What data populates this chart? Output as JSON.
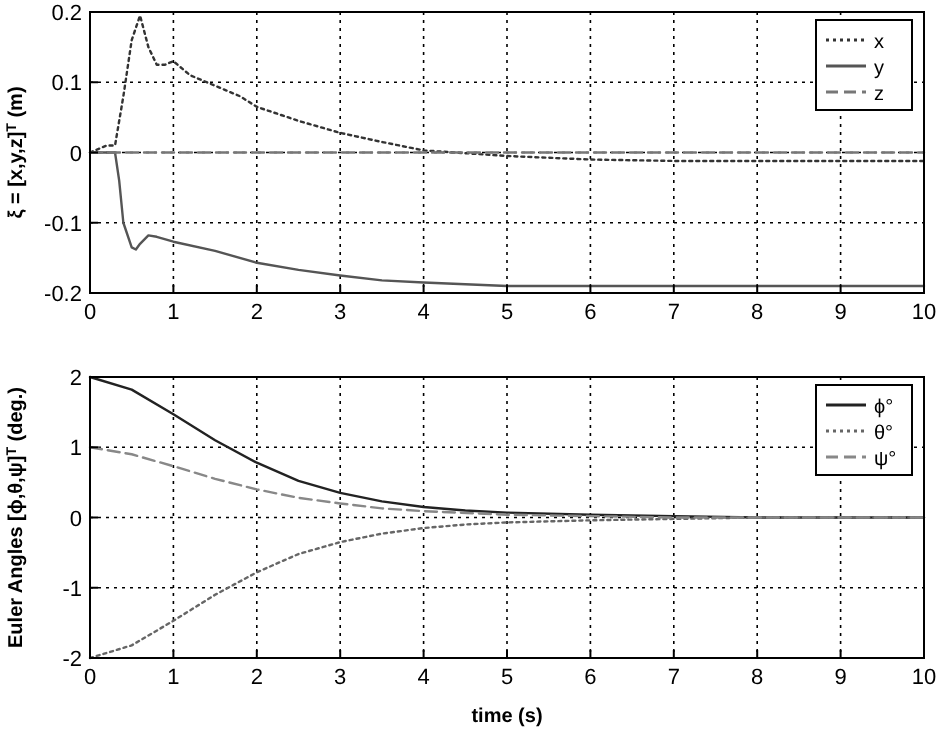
{
  "chart_data": [
    {
      "type": "line",
      "ylabel": "ξ =  [x,y,z]$^{T}$ (m)",
      "xlim": [
        0,
        10
      ],
      "xticks": [
        0,
        1,
        2,
        3,
        4,
        5,
        6,
        7,
        8,
        9,
        10
      ],
      "ylim": [
        -0.2,
        0.2
      ],
      "yticks": [
        -0.2,
        -0.1,
        0,
        0.1,
        0.2
      ],
      "grid": true,
      "legend": "top right",
      "series": [
        {
          "name": "x",
          "color": "#333333",
          "line_style": "dotted",
          "x": [
            0,
            0.2,
            0.3,
            0.4,
            0.5,
            0.6,
            0.7,
            0.8,
            0.9,
            1,
            1.2,
            1.5,
            1.8,
            2,
            2.5,
            3,
            3.5,
            4,
            5,
            6,
            7,
            8,
            10
          ],
          "values": [
            0,
            0.01,
            0.01,
            0.08,
            0.16,
            0.195,
            0.15,
            0.125,
            0.125,
            0.13,
            0.11,
            0.095,
            0.08,
            0.065,
            0.045,
            0.028,
            0.015,
            0.003,
            -0.005,
            -0.01,
            -0.012,
            -0.012,
            -0.012
          ]
        },
        {
          "name": "y",
          "color": "#555555",
          "line_style": "solid",
          "x": [
            0,
            0.3,
            0.35,
            0.4,
            0.5,
            0.55,
            0.6,
            0.7,
            0.8,
            1,
            1.5,
            2,
            2.5,
            3,
            3.5,
            4,
            5,
            6,
            10
          ],
          "values": [
            0,
            0,
            -0.04,
            -0.1,
            -0.135,
            -0.138,
            -0.13,
            -0.118,
            -0.12,
            -0.127,
            -0.14,
            -0.157,
            -0.167,
            -0.175,
            -0.182,
            -0.185,
            -0.19,
            -0.19,
            -0.19
          ]
        },
        {
          "name": "z",
          "color": "#777777",
          "line_style": "dashed",
          "x": [
            0,
            10
          ],
          "values": [
            0,
            0
          ]
        }
      ]
    },
    {
      "type": "line",
      "xlabel": "time (s)",
      "ylabel": "Euler Angles  [ϕ,θ,ψ]$^{T}$ (deg.)",
      "xlim": [
        0,
        10
      ],
      "xticks": [
        0,
        1,
        2,
        3,
        4,
        5,
        6,
        7,
        8,
        9,
        10
      ],
      "ylim": [
        -2,
        2
      ],
      "yticks": [
        -2,
        -1,
        0,
        1,
        2
      ],
      "grid": true,
      "legend": "top right",
      "series": [
        {
          "name": "ϕ°",
          "color": "#222222",
          "line_style": "solid",
          "x": [
            0,
            0.5,
            1,
            1.5,
            2,
            2.5,
            3,
            3.5,
            4,
            4.5,
            5,
            6,
            7,
            8,
            10
          ],
          "values": [
            2,
            1.82,
            1.47,
            1.1,
            0.78,
            0.52,
            0.35,
            0.23,
            0.15,
            0.1,
            0.07,
            0.04,
            0.02,
            0,
            0
          ]
        },
        {
          "name": "θ°",
          "color": "#666666",
          "line_style": "dotted",
          "x": [
            0,
            0.5,
            1,
            1.5,
            2,
            2.5,
            3,
            3.5,
            4,
            4.5,
            5,
            6,
            7,
            8,
            10
          ],
          "values": [
            -2,
            -1.82,
            -1.47,
            -1.1,
            -0.78,
            -0.52,
            -0.35,
            -0.23,
            -0.15,
            -0.1,
            -0.07,
            -0.04,
            -0.02,
            0,
            0
          ]
        },
        {
          "name": "ψ°",
          "color": "#888888",
          "line_style": "dashed",
          "x": [
            0,
            0.5,
            1,
            1.5,
            2,
            2.5,
            3,
            3.5,
            4,
            5,
            6,
            7,
            10
          ],
          "values": [
            1,
            0.9,
            0.73,
            0.55,
            0.4,
            0.28,
            0.2,
            0.13,
            0.09,
            0.04,
            0.02,
            0,
            0
          ]
        }
      ]
    }
  ]
}
